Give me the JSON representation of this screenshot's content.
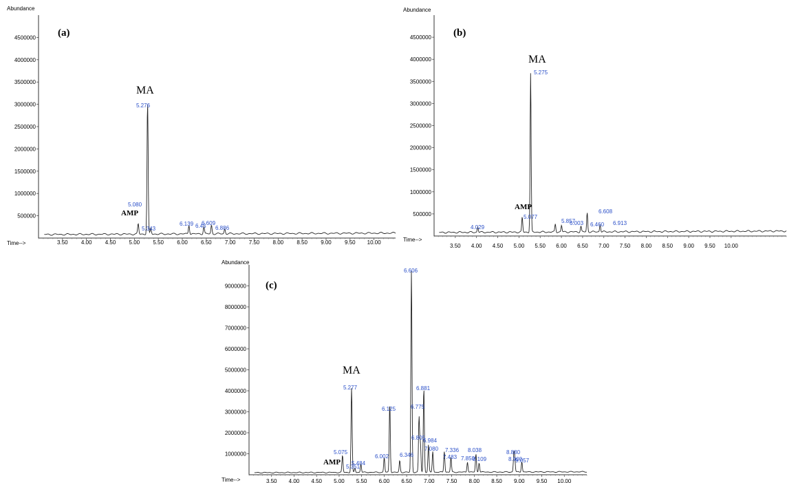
{
  "chart_data": [
    {
      "type": "line",
      "panel_label": "(a)",
      "ylabel": "Abundance",
      "xlabel": "Time-->",
      "xlim": [
        3.0,
        10.45
      ],
      "ylim": [
        0,
        5000000
      ],
      "yticks": [
        "500000",
        "1000000",
        "1500000",
        "2000000",
        "2500000",
        "3000000",
        "3500000",
        "4000000",
        "4500000"
      ],
      "xticks": [
        "3.50",
        "4.00",
        "4.50",
        "5.00",
        "5.50",
        "6.00",
        "6.50",
        "7.00",
        "7.50",
        "8.00",
        "8.50",
        "9.00",
        "9.50",
        "10.00"
      ],
      "baseline": 80000,
      "peaks": [
        {
          "rt": 5.08,
          "label": "5.080",
          "height": 230000
        },
        {
          "rt": 5.276,
          "label": "5.276",
          "height": 2950000
        },
        {
          "rt": 5.343,
          "label": "5.343",
          "height": 120000
        },
        {
          "rt": 6.139,
          "label": "6.139",
          "height": 200000
        },
        {
          "rt": 6.45,
          "label": "6.45",
          "height": 160000
        },
        {
          "rt": 6.609,
          "label": "6.609",
          "height": 190000
        },
        {
          "rt": 6.886,
          "label": "6.886",
          "height": 110000
        }
      ],
      "annotations": [
        {
          "text": "MA",
          "kind": "compound",
          "rt": 5.276
        },
        {
          "text": "AMP",
          "kind": "compound",
          "rt": 5.08
        }
      ]
    },
    {
      "type": "line",
      "panel_label": "(b)",
      "ylabel": "Abundance",
      "xlabel": "Time-->",
      "xlim": [
        3.0,
        11.3
      ],
      "ylim": [
        0,
        5000000
      ],
      "yticks": [
        "500000",
        "1000000",
        "1500000",
        "2000000",
        "2500000",
        "3000000",
        "3500000",
        "4000000",
        "4500000"
      ],
      "xticks": [
        "3.50",
        "4.00",
        "4.50",
        "5.00",
        "5.50",
        "6.00",
        "6.50",
        "7.00",
        "7.50",
        "8.00",
        "8.50",
        "9.00",
        "9.50",
        "10.00"
      ],
      "baseline": 80000,
      "peaks": [
        {
          "rt": 4.029,
          "label": "4.029",
          "height": 130000
        },
        {
          "rt": 5.077,
          "label": "5.077",
          "height": 340000
        },
        {
          "rt": 5.275,
          "label": "5.275",
          "height": 3600000
        },
        {
          "rt": 5.857,
          "label": "5.857",
          "height": 180000
        },
        {
          "rt": 6.003,
          "label": "6.003",
          "height": 150000
        },
        {
          "rt": 6.46,
          "label": "6.460",
          "height": 130000
        },
        {
          "rt": 6.608,
          "label": "6.608",
          "height": 430000
        },
        {
          "rt": 6.913,
          "label": "6.913",
          "height": 170000
        }
      ],
      "annotations": [
        {
          "text": "MA",
          "kind": "compound",
          "rt": 5.275
        },
        {
          "text": "AMP",
          "kind": "compound",
          "rt": 5.077
        }
      ]
    },
    {
      "type": "line",
      "panel_label": "(c)",
      "ylabel": "Abundance",
      "xlabel": "Time-->",
      "xlim": [
        3.0,
        10.5
      ],
      "ylim": [
        0,
        10000000
      ],
      "yticks": [
        "1000000",
        "2000000",
        "3000000",
        "4000000",
        "5000000",
        "6000000",
        "7000000",
        "8000000",
        "9000000"
      ],
      "xticks": [
        "3.50",
        "4.00",
        "4.50",
        "5.00",
        "5.50",
        "6.00",
        "6.50",
        "7.00",
        "7.50",
        "8.00",
        "8.50",
        "9.00",
        "9.50",
        "10.00"
      ],
      "baseline": 100000,
      "peaks": [
        {
          "rt": 5.075,
          "label": "5.075",
          "height": 800000
        },
        {
          "rt": 5.277,
          "label": "5.277",
          "height": 4000000
        },
        {
          "rt": 5.351,
          "label": "5.351",
          "height": 200000
        },
        {
          "rt": 5.484,
          "label": "5.484",
          "height": 400000
        },
        {
          "rt": 6.002,
          "label": "6.002",
          "height": 700000
        },
        {
          "rt": 6.125,
          "label": "6.125",
          "height": 3300000
        },
        {
          "rt": 6.346,
          "label": "6.346",
          "height": 550000
        },
        {
          "rt": 6.606,
          "label": "6.606",
          "height": 9600000
        },
        {
          "rt": 6.775,
          "label": "6.775",
          "height": 2600000
        },
        {
          "rt": 6.805,
          "label": "6.805",
          "height": 1400000
        },
        {
          "rt": 6.881,
          "label": "6.881",
          "height": 4000000
        },
        {
          "rt": 6.984,
          "label": "6.984",
          "height": 1300000
        },
        {
          "rt": 7.08,
          "label": "7.080",
          "height": 1000000
        },
        {
          "rt": 7.336,
          "label": "7.336",
          "height": 1000000
        },
        {
          "rt": 7.483,
          "label": "7.483",
          "height": 700000
        },
        {
          "rt": 7.85,
          "label": "7.850",
          "height": 500000
        },
        {
          "rt": 8.038,
          "label": "8.038",
          "height": 850000
        },
        {
          "rt": 8.109,
          "label": "8.109",
          "height": 450000
        },
        {
          "rt": 8.88,
          "label": "8.880",
          "height": 800000
        },
        {
          "rt": 8.9,
          "label": "8.900",
          "height": 600000
        },
        {
          "rt": 9.057,
          "label": "9.057",
          "height": 500000
        }
      ],
      "annotations": [
        {
          "text": "MA",
          "kind": "compound",
          "rt": 5.277
        },
        {
          "text": "AMP",
          "kind": "compound",
          "rt": 5.075
        }
      ]
    }
  ]
}
